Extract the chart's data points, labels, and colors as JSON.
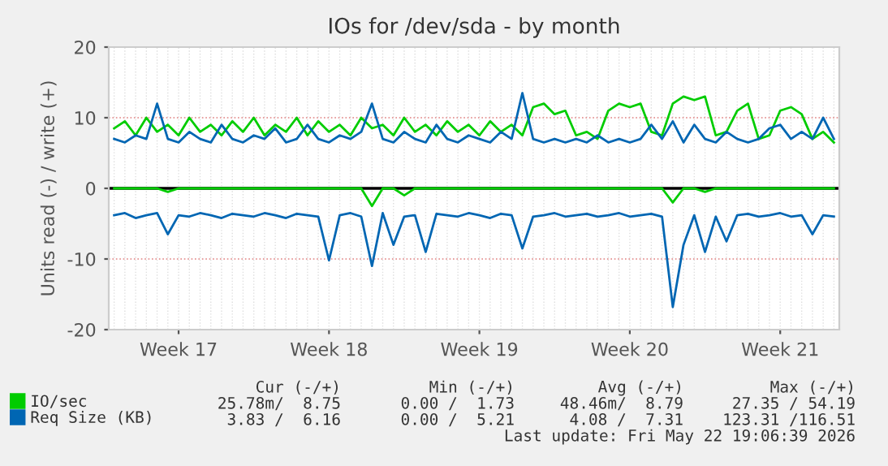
{
  "chart_data": {
    "type": "line",
    "title": "IOs for /dev/sda - by month",
    "ylabel": "Units read (-) / write (+)",
    "categories": [
      null,
      null,
      null,
      null,
      null,
      null,
      "Week 17",
      null,
      null,
      null,
      null,
      null,
      null,
      null,
      null,
      null,
      null,
      null,
      null,
      null,
      "Week 18",
      null,
      null,
      null,
      null,
      null,
      null,
      null,
      null,
      null,
      null,
      null,
      null,
      null,
      "Week 19",
      null,
      null,
      null,
      null,
      null,
      null,
      null,
      null,
      null,
      null,
      null,
      null,
      null,
      "Week 20",
      null,
      null,
      null,
      null,
      null,
      null,
      null,
      null,
      null,
      null,
      null,
      null,
      null,
      "Week 21",
      null,
      null,
      null,
      null,
      null
    ],
    "series": [
      {
        "name": "IO/sec",
        "color": "#00cc00",
        "values": [
          8.5,
          9.5,
          7.5,
          10,
          8,
          9,
          7.5,
          10,
          8,
          9,
          7.5,
          9.5,
          8,
          10,
          7.5,
          9,
          8,
          10,
          7.5,
          9.5,
          8,
          9,
          7.5,
          10,
          8.5,
          9,
          7.5,
          10,
          8,
          9,
          7.5,
          9.5,
          8,
          9,
          7.5,
          9.5,
          8,
          9,
          7.5,
          11.5,
          12,
          10.5,
          11,
          7.5,
          8,
          7,
          11,
          12,
          11.5,
          12,
          8,
          7.5,
          12,
          13,
          12.5,
          13,
          7.5,
          8,
          11,
          12,
          7,
          7.5,
          11,
          11.5,
          10.5,
          7,
          8,
          6.5
        ]
      },
      {
        "color": "#00cc00",
        "values": [
          0,
          0,
          0,
          0,
          0,
          -0.5,
          0,
          0,
          0,
          0,
          0,
          0,
          0,
          0,
          0,
          0,
          0,
          0,
          0,
          0,
          0,
          0,
          0,
          0,
          -2.5,
          0,
          0,
          -1,
          0,
          0,
          0,
          0,
          0,
          0,
          0,
          0,
          0,
          0,
          0,
          0,
          0,
          0,
          0,
          0,
          0,
          0,
          0,
          0,
          0,
          0,
          0,
          0,
          -2,
          0,
          0,
          -0.5,
          0,
          0,
          0,
          0,
          0,
          0,
          0,
          0,
          0,
          0,
          0,
          0
        ]
      },
      {
        "name": "Req Size (KB)",
        "color": "#0066b3",
        "values": [
          7,
          6.5,
          7.5,
          7,
          12,
          7,
          6.5,
          8,
          7,
          6.5,
          9,
          7,
          6.5,
          7.5,
          7,
          8.5,
          6.5,
          7,
          9,
          7,
          6.5,
          7.5,
          7,
          8,
          12,
          7,
          6.5,
          8,
          7,
          6.5,
          9,
          7,
          6.5,
          7.5,
          7,
          6.5,
          8,
          7,
          13.5,
          7,
          6.5,
          7,
          6.5,
          7,
          6.5,
          7.5,
          6.5,
          7,
          6.5,
          7,
          9,
          7,
          9.5,
          6.5,
          9,
          7,
          6.5,
          8,
          7,
          6.5,
          7,
          8.5,
          9,
          7,
          8,
          7,
          10,
          7
        ]
      },
      {
        "color": "#0066b3",
        "values": [
          -3.8,
          -3.5,
          -4.2,
          -3.8,
          -3.5,
          -6.5,
          -3.8,
          -4,
          -3.5,
          -3.8,
          -4.2,
          -3.6,
          -3.8,
          -4,
          -3.5,
          -3.8,
          -4.2,
          -3.6,
          -3.8,
          -4,
          -10.2,
          -3.8,
          -3.5,
          -4,
          -11,
          -3.5,
          -8,
          -4,
          -3.8,
          -9,
          -3.6,
          -3.8,
          -4,
          -3.5,
          -3.8,
          -4.2,
          -3.6,
          -3.8,
          -8.5,
          -4,
          -3.8,
          -3.5,
          -4,
          -3.8,
          -3.6,
          -4,
          -3.8,
          -3.5,
          -4,
          -3.8,
          -3.6,
          -4,
          -16.8,
          -8,
          -3.8,
          -9,
          -4,
          -7.5,
          -3.8,
          -3.6,
          -4,
          -3.8,
          -3.5,
          -4,
          -3.8,
          -6.5,
          -3.8,
          -4
        ]
      }
    ],
    "ylim": [
      -20,
      20
    ],
    "yticks": [
      -20,
      -10,
      0,
      10,
      20
    ],
    "ref_lines": [
      {
        "axis": "y",
        "value": 0,
        "color": "#000000"
      }
    ],
    "grid": true,
    "legend": "bottom",
    "marker": "none",
    "line_style": "solid",
    "annotations": [
      "Cur (-/+)",
      "Min (-/+)",
      "Avg (-/+)",
      "Max (-/+)",
      "25.78m/  8.75",
      "0.00 /  1.73",
      "48.46m/  8.79",
      "27.35 / 54.19",
      "3.83 /  6.16",
      "0.00 /  5.21",
      "4.08 /  7.31",
      "123.31 /116.51",
      "Last update: Fri May 22 19:06:39 2026"
    ]
  }
}
